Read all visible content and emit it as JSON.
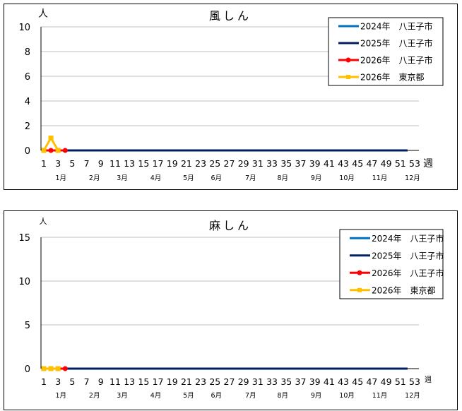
{
  "chart_data": [
    {
      "type": "line",
      "title": "風しん",
      "ylabel": "人",
      "xlabel": "週",
      "ylim": [
        0,
        10
      ],
      "yticks": [
        "0",
        "2",
        "4",
        "6",
        "8",
        "10"
      ],
      "xticks": [
        "1",
        "3",
        "5",
        "7",
        "9",
        "11",
        "13",
        "15",
        "17",
        "19",
        "21",
        "23",
        "25",
        "27",
        "29",
        "31",
        "33",
        "35",
        "37",
        "39",
        "41",
        "43",
        "45",
        "47",
        "49",
        "51",
        "53"
      ],
      "months": [
        "1月",
        "2月",
        "3月",
        "4月",
        "5月",
        "6月",
        "7月",
        "8月",
        "9月",
        "10月",
        "11月",
        "12月"
      ],
      "grid": true,
      "legend_position": "top-right",
      "series": [
        {
          "name": "2024年　八王子市",
          "color": "#0070C0",
          "marker": "none",
          "start_week": 1,
          "values": [
            0,
            0,
            0,
            0,
            0,
            0,
            0,
            0,
            0,
            0,
            0,
            0,
            0,
            0,
            0,
            0,
            0,
            0,
            0,
            0,
            0,
            0,
            0,
            0,
            0,
            0,
            0,
            0,
            0,
            0,
            0,
            0,
            0,
            0,
            0,
            0,
            0,
            0,
            0,
            0,
            0,
            0,
            0,
            0,
            0,
            0,
            0,
            0,
            0,
            0,
            0,
            0
          ]
        },
        {
          "name": "2025年　八王子市",
          "color": "#002060",
          "marker": "none",
          "start_week": 1,
          "values": [
            0,
            0,
            0,
            0,
            0,
            0,
            0,
            0,
            0,
            0,
            0,
            0,
            0,
            0,
            0,
            0,
            0,
            0,
            0,
            0,
            0,
            0,
            0,
            0,
            0,
            0,
            0,
            0,
            0,
            0,
            0,
            0,
            0,
            0,
            0,
            0,
            0,
            0,
            0,
            0,
            0,
            0,
            0,
            0,
            0,
            0,
            0,
            0,
            0,
            0,
            0,
            0
          ]
        },
        {
          "name": "2026年　八王子市",
          "color": "#FF0000",
          "marker": "circle",
          "start_week": 1,
          "values": [
            0,
            0,
            0,
            0
          ]
        },
        {
          "name": "2026年　東京都",
          "color": "#FFC000",
          "marker": "square",
          "start_week": 1,
          "values": [
            0,
            1,
            0
          ]
        }
      ]
    },
    {
      "type": "line",
      "title": "麻しん",
      "ylabel": "人",
      "xlabel": "週",
      "ylim": [
        0,
        15
      ],
      "yticks": [
        "0",
        "5",
        "10",
        "15"
      ],
      "xticks": [
        "1",
        "3",
        "5",
        "7",
        "9",
        "11",
        "13",
        "15",
        "17",
        "19",
        "21",
        "23",
        "25",
        "27",
        "29",
        "31",
        "33",
        "35",
        "37",
        "39",
        "41",
        "43",
        "45",
        "47",
        "49",
        "51",
        "53"
      ],
      "months": [
        "1月",
        "2月",
        "3月",
        "4月",
        "5月",
        "6月",
        "7月",
        "8月",
        "9月",
        "10月",
        "11月",
        "12月"
      ],
      "grid": true,
      "legend_position": "top-right",
      "series": [
        {
          "name": "2024年　八王子市",
          "color": "#0070C0",
          "marker": "none",
          "start_week": 1,
          "values": [
            0,
            0,
            0,
            0,
            0,
            0,
            0,
            0,
            0,
            0,
            0,
            0,
            0,
            0,
            0,
            0,
            0,
            0,
            0,
            0,
            0,
            0,
            0,
            0,
            0,
            0,
            0,
            0,
            0,
            0,
            0,
            0,
            0,
            0,
            0,
            0,
            0,
            0,
            0,
            0,
            0,
            0,
            0,
            0,
            0,
            0,
            0,
            0,
            0,
            0,
            0,
            0
          ]
        },
        {
          "name": "2025年　八王子市",
          "color": "#002060",
          "marker": "none",
          "start_week": 1,
          "values": [
            0,
            0,
            0,
            0,
            0,
            0,
            0,
            0,
            0,
            0,
            0,
            0,
            0,
            0,
            0,
            0,
            0,
            0,
            0,
            0,
            0,
            0,
            0,
            0,
            0,
            0,
            0,
            0,
            0,
            0,
            0,
            0,
            0,
            0,
            0,
            0,
            0,
            0,
            0,
            0,
            0,
            0,
            0,
            0,
            0,
            0,
            0,
            0,
            0,
            0,
            0,
            0
          ]
        },
        {
          "name": "2026年　八王子市",
          "color": "#FF0000",
          "marker": "circle",
          "start_week": 1,
          "values": [
            0,
            0,
            0,
            0
          ]
        },
        {
          "name": "2026年　東京都",
          "color": "#FFC000",
          "marker": "square",
          "start_week": 1,
          "values": [
            0,
            0,
            0
          ]
        }
      ]
    }
  ]
}
